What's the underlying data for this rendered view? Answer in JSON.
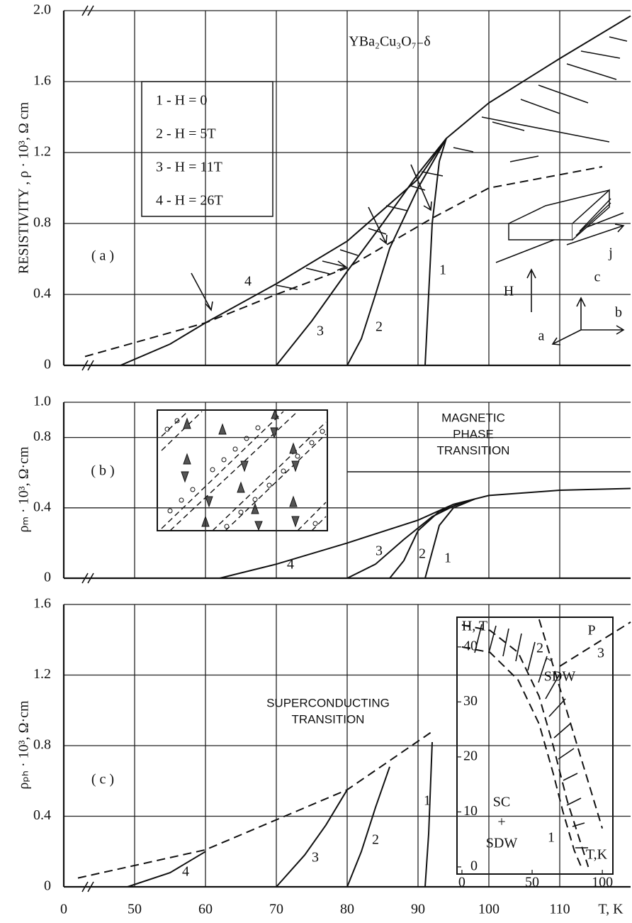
{
  "chart_data": [
    {
      "type": "line",
      "ylabel": "RESISTIVITY ,   ρ · 10³, Ω cm",
      "xlim": [
        40,
        120
      ],
      "xticks": [
        50,
        60,
        70,
        80,
        90,
        100,
        110
      ],
      "ylim": [
        0,
        2
      ],
      "yticks": [
        0,
        0.4,
        0.8,
        1.2,
        1.6,
        {
          "value": 2,
          "label": "2.0"
        }
      ],
      "grid": true,
      "legend": [
        "1 -   H = 0",
        "2 -   H = 5T",
        "3 -   H = 11T",
        "4 -   H = 26T"
      ],
      "annotations": [
        "YBa₂Cu₃O₇₋δ",
        "( a )",
        "H",
        "c",
        "b",
        "a",
        "j"
      ],
      "series": [
        {
          "name": "1",
          "color": "#111",
          "dash": false,
          "x": [
            91,
            91.5,
            92,
            93,
            94
          ],
          "values": [
            0,
            0.4,
            0.8,
            1.15,
            1.28
          ]
        },
        {
          "name": "2",
          "color": "#111",
          "dash": false,
          "x": [
            80,
            82,
            84,
            86,
            90,
            94
          ],
          "values": [
            0,
            0.15,
            0.4,
            0.66,
            1.0,
            1.28
          ]
        },
        {
          "name": "3",
          "color": "#111",
          "dash": false,
          "x": [
            70,
            75,
            80,
            85,
            90,
            94
          ],
          "values": [
            0,
            0.25,
            0.53,
            0.8,
            1.08,
            1.28
          ]
        },
        {
          "name": "4",
          "color": "#111",
          "dash": false,
          "x": [
            48,
            55,
            60,
            70,
            80,
            90,
            94,
            100,
            110,
            120
          ],
          "values": [
            0,
            0.12,
            0.24,
            0.46,
            0.7,
            1.05,
            1.28,
            1.48,
            1.73,
            1.97
          ]
        },
        {
          "color": "#111",
          "dash": true,
          "x": [
            43,
            60,
            70,
            80,
            92,
            100,
            116
          ],
          "values": [
            0.05,
            0.24,
            0.4,
            0.55,
            0.83,
            1.0,
            1.12
          ]
        }
      ]
    },
    {
      "type": "line",
      "ylabel": "ρₘ · 10³, Ω·cm",
      "xlim": [
        40,
        120
      ],
      "xticks": [
        50,
        60,
        70,
        80,
        90,
        100,
        110
      ],
      "ylim": [
        0,
        1
      ],
      "yticks": [
        0,
        0.4,
        0.8,
        {
          "value": 1,
          "label": "1.0"
        }
      ],
      "grid": true,
      "annotations": [
        "MAGNETIC",
        "PHASE",
        "TRANSITION",
        "( b )"
      ],
      "series": [
        {
          "name": "1",
          "color": "#111",
          "dash": false,
          "x": [
            91,
            92,
            93,
            95,
            98
          ],
          "values": [
            0,
            0.15,
            0.3,
            0.4,
            0.45
          ]
        },
        {
          "name": "2",
          "color": "#111",
          "dash": false,
          "x": [
            86,
            88,
            90,
            93,
            97
          ],
          "values": [
            0,
            0.1,
            0.27,
            0.38,
            0.44
          ]
        },
        {
          "name": "3",
          "color": "#111",
          "dash": false,
          "x": [
            80,
            84,
            88,
            92,
            96
          ],
          "values": [
            0,
            0.08,
            0.22,
            0.35,
            0.43
          ]
        },
        {
          "name": "4",
          "color": "#111",
          "dash": false,
          "x": [
            62,
            70,
            80,
            90,
            95,
            100,
            110,
            120
          ],
          "values": [
            0,
            0.08,
            0.2,
            0.33,
            0.42,
            0.47,
            0.5,
            0.51
          ]
        }
      ]
    },
    {
      "type": "line",
      "ylabel": "ρₚₕ · 10³, Ω·cm",
      "xlabel": "T, K",
      "xlim": [
        40,
        120
      ],
      "xticks": [
        {
          "value": 40,
          "label": "0"
        },
        50,
        60,
        70,
        80,
        90,
        100,
        110
      ],
      "ylim": [
        0,
        1.6
      ],
      "yticks": [
        0,
        0.4,
        0.8,
        1.2,
        1.6
      ],
      "grid": true,
      "annotations": [
        "SUPERCONDUCTING",
        "TRANSITION",
        "( c )"
      ],
      "series": [
        {
          "name": "1",
          "color": "#111",
          "dash": false,
          "x": [
            91,
            91.5,
            92
          ],
          "values": [
            0,
            0.3,
            0.82
          ]
        },
        {
          "name": "2",
          "color": "#111",
          "dash": false,
          "x": [
            80,
            82,
            84,
            86
          ],
          "values": [
            0,
            0.2,
            0.45,
            0.68
          ]
        },
        {
          "name": "3",
          "color": "#111",
          "dash": false,
          "x": [
            70,
            74,
            77,
            80
          ],
          "values": [
            0,
            0.18,
            0.35,
            0.55
          ]
        },
        {
          "name": "4",
          "color": "#111",
          "dash": false,
          "x": [
            49,
            55,
            60
          ],
          "values": [
            0,
            0.08,
            0.2
          ]
        },
        {
          "color": "#111",
          "dash": true,
          "x": [
            42,
            60,
            80,
            92
          ],
          "values": [
            0.05,
            0.21,
            0.55,
            0.88
          ]
        },
        {
          "color": "#111",
          "dash": true,
          "x": [
            110,
            120
          ],
          "values": [
            1.25,
            1.5
          ]
        }
      ]
    },
    {
      "type": "line",
      "ylabel": "H, T",
      "xlabel": "T,K",
      "xlim": [
        -3.5,
        107.5
      ],
      "xticks": [
        0,
        50,
        100
      ],
      "ylim": [
        -1.3,
        45.4
      ],
      "yticks": [
        0,
        10,
        20,
        30,
        40
      ],
      "grid": false,
      "annotations": [
        "SC",
        "+",
        "SDW",
        "~",
        "SDW",
        "P"
      ],
      "series": [
        {
          "name": "1",
          "color": "#111",
          "dash": true,
          "x": [
            0,
            20,
            40,
            55,
            65,
            72,
            80,
            85
          ],
          "values": [
            40,
            39,
            34,
            26,
            17,
            10,
            3,
            0
          ]
        },
        {
          "name": "2",
          "color": "#111",
          "dash": true,
          "x": [
            0,
            20,
            40,
            55,
            65,
            75,
            85,
            90
          ],
          "values": [
            44,
            43,
            39,
            31,
            22,
            12,
            4,
            0
          ]
        },
        {
          "name": "3",
          "color": "#111",
          "dash": true,
          "x": [
            55,
            100
          ],
          "values": [
            45,
            7
          ]
        }
      ]
    }
  ]
}
